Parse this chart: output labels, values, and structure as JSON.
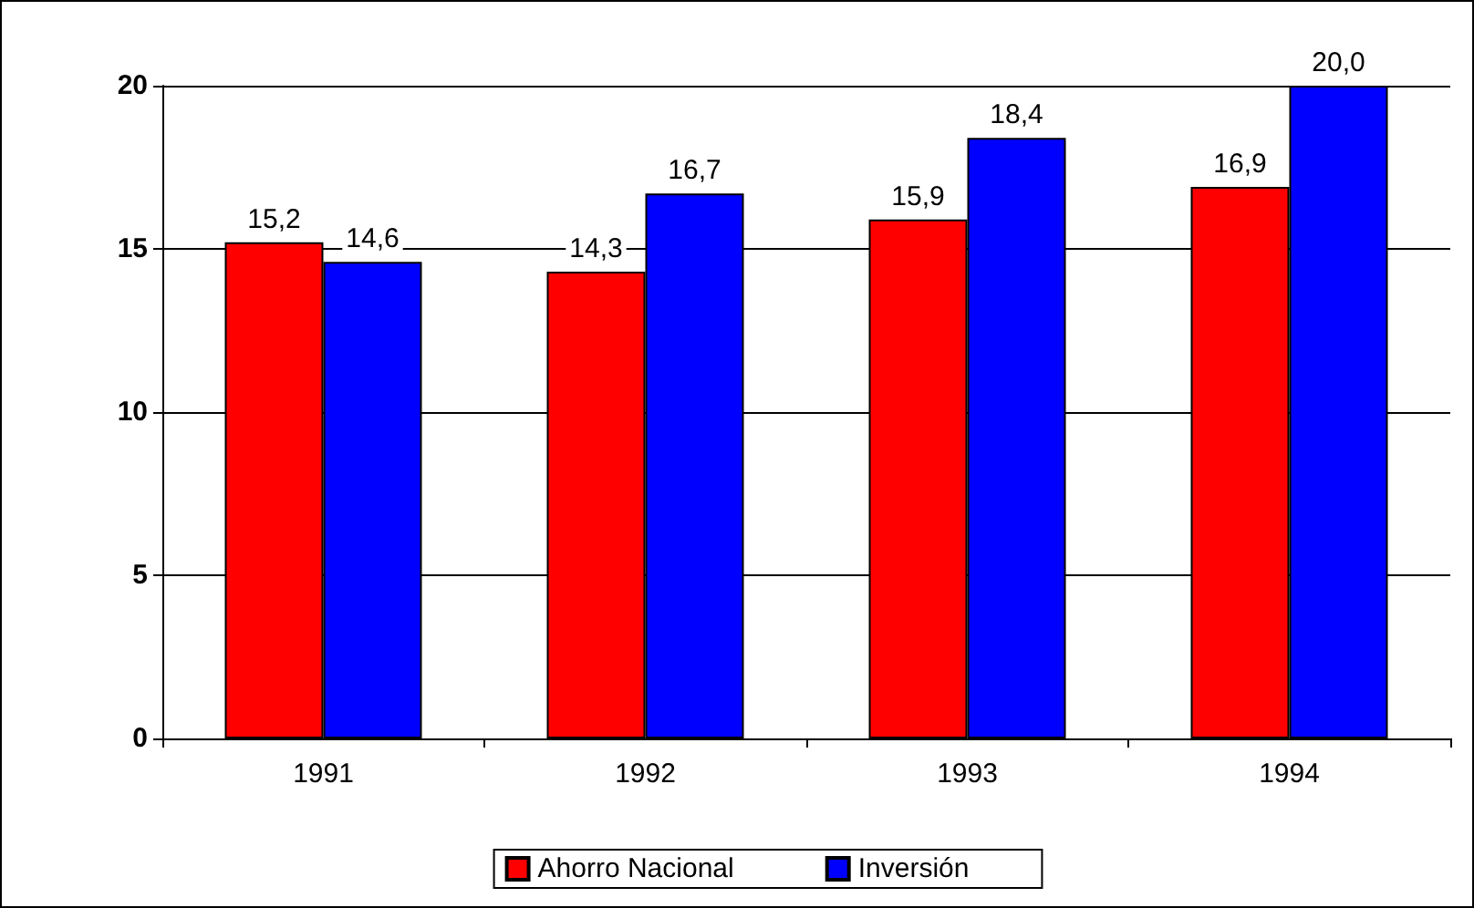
{
  "chart_data": {
    "type": "bar",
    "categories": [
      "1991",
      "1992",
      "1993",
      "1994"
    ],
    "series": [
      {
        "name": "Ahorro Nacional",
        "color": "#ff0000",
        "values": [
          15.2,
          14.3,
          15.9,
          16.9
        ],
        "value_labels": [
          "15,2",
          "14,3",
          "15,9",
          "16,9"
        ]
      },
      {
        "name": "Inversión",
        "color": "#0000ff",
        "values": [
          14.6,
          16.7,
          18.4,
          20.0
        ],
        "value_labels": [
          "14,6",
          "16,7",
          "18,4",
          "20,0"
        ]
      }
    ],
    "ylim": [
      0,
      20
    ],
    "yticks": [
      0,
      5,
      10,
      15,
      20
    ],
    "grid": "y",
    "legend": "bottom"
  }
}
